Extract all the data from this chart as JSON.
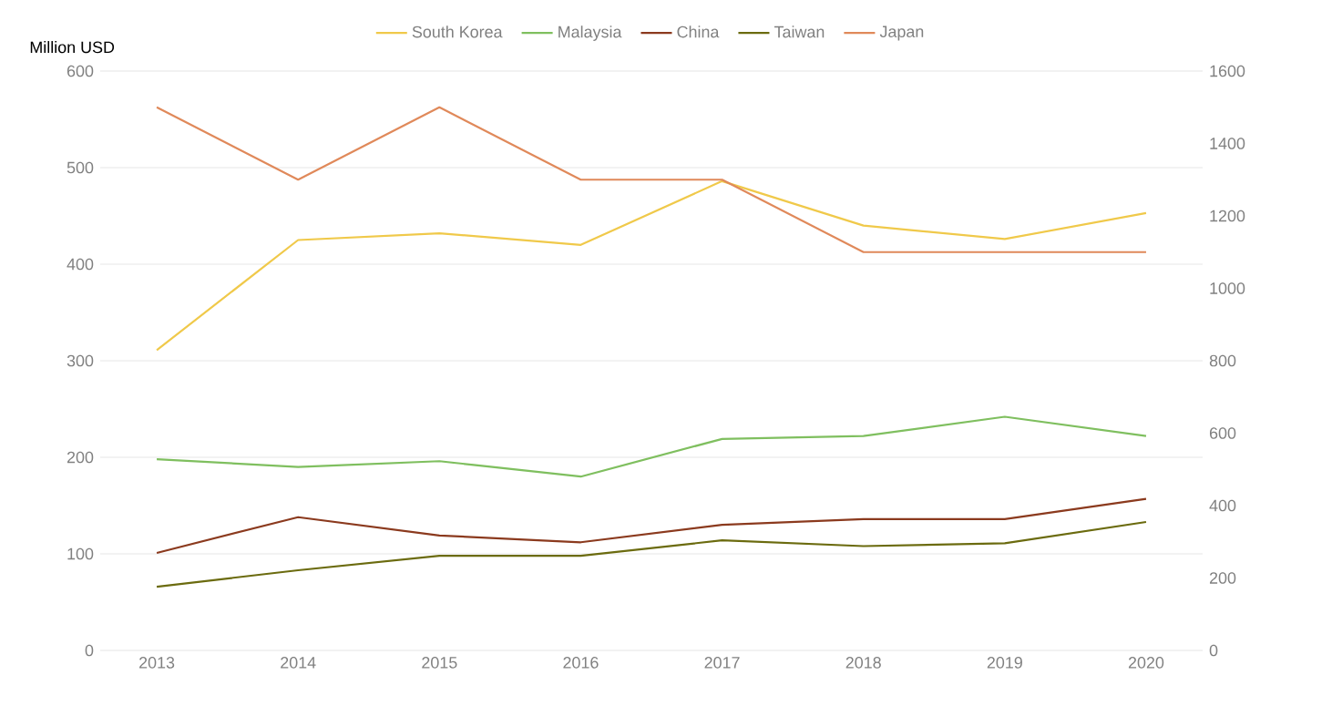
{
  "chart_data": {
    "type": "line",
    "ylabel": "Million USD",
    "categories": [
      "2013",
      "2014",
      "2015",
      "2016",
      "2017",
      "2018",
      "2019",
      "2020"
    ],
    "ylim": [
      0,
      600
    ],
    "yticks": [
      0,
      100,
      200,
      300,
      400,
      500,
      600
    ],
    "y2lim": [
      0,
      1600
    ],
    "y2ticks": [
      0,
      200,
      400,
      600,
      800,
      1000,
      1200,
      1400,
      1600
    ],
    "grid": "y",
    "legend": "top",
    "marker": "none",
    "line_style": "solid",
    "series": [
      {
        "name": "South Korea",
        "color": "#f0c94a",
        "values": [
          311,
          425,
          432,
          420,
          486,
          440,
          426,
          453
        ]
      },
      {
        "name": "Malaysia",
        "color": "#7fbf5f",
        "values": [
          198,
          190,
          196,
          180,
          219,
          222,
          242,
          222
        ]
      },
      {
        "name": "China",
        "color": "#8b3a1e",
        "values": [
          101,
          138,
          119,
          112,
          130,
          136,
          136,
          157
        ]
      },
      {
        "name": "Taiwan",
        "color": "#6b6b0f",
        "values": [
          66,
          83,
          98,
          98,
          114,
          108,
          111,
          133
        ]
      },
      {
        "name": "Japan",
        "color": "#e0895a",
        "axis": "y2",
        "values": [
          1500,
          1300,
          1500,
          1300,
          1300,
          1100,
          1100,
          1100
        ]
      }
    ]
  }
}
